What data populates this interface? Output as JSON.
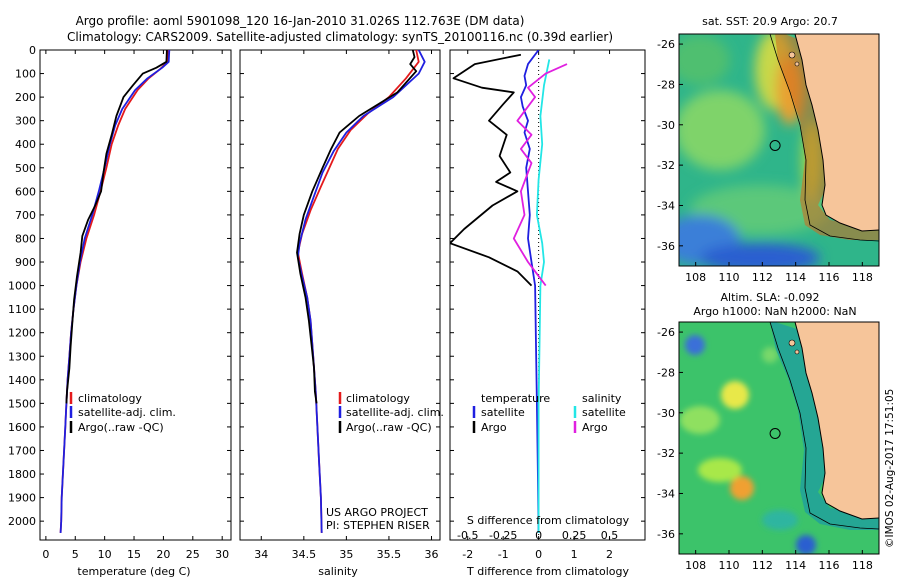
{
  "header": {
    "line1": "Argo profile: aoml 5901098_120 16-Jan-2010 31.026S 112.763E (DM data)",
    "line2": "Climatology: CARS2009. Satellite-adjusted climatology: synTS_20100116.nc (0.39d earlier)"
  },
  "side_stamp": "©IMOS 02-Aug-2017 17:51:05",
  "colors": {
    "climatology": "#e41a1c",
    "satellite": "#1f1fe0",
    "argo": "#000000",
    "sal_satellite": "#22e6e6",
    "sal_argo": "#e020e0",
    "land": "#f6c59a"
  },
  "chart_data": [
    {
      "type": "line",
      "name": "temperature-profile",
      "xlabel": "temperature (deg C)",
      "ylabel": "",
      "xlim": [
        -1,
        31.5
      ],
      "ylim": [
        2080,
        0
      ],
      "xticks": [
        0,
        5,
        10,
        15,
        20,
        25,
        30
      ],
      "yticks": [
        0,
        100,
        200,
        300,
        400,
        500,
        600,
        700,
        800,
        900,
        1000,
        1100,
        1200,
        1300,
        1400,
        1500,
        1600,
        1700,
        1800,
        1900,
        2000
      ],
      "legend": [
        "climatology",
        "satellite-adj. clim.",
        "Argo(..raw -QC)"
      ],
      "legend_position": "bottom-center",
      "series": [
        {
          "name": "climatology",
          "color": "#e41a1c",
          "points": [
            [
              20.8,
              0
            ],
            [
              20.7,
              50
            ],
            [
              19.5,
              80
            ],
            [
              17.5,
              120
            ],
            [
              15.6,
              170
            ],
            [
              13.5,
              250
            ],
            [
              12.3,
              320
            ],
            [
              11.2,
              400
            ],
            [
              10.3,
              500
            ],
            [
              9.3,
              600
            ],
            [
              8.2,
              700
            ],
            [
              6.9,
              800
            ],
            [
              5.9,
              900
            ],
            [
              5.2,
              1000
            ],
            [
              4.7,
              1100
            ],
            [
              4.3,
              1200
            ],
            [
              4.0,
              1300
            ],
            [
              3.7,
              1400
            ],
            [
              3.5,
              1500
            ],
            [
              3.3,
              1600
            ],
            [
              3.1,
              1700
            ],
            [
              2.9,
              1800
            ],
            [
              2.7,
              1900
            ],
            [
              2.6,
              2000
            ],
            [
              2.5,
              2050
            ]
          ]
        },
        {
          "name": "satellite-adj. clim.",
          "color": "#1f1fe0",
          "points": [
            [
              21.0,
              0
            ],
            [
              20.9,
              50
            ],
            [
              19.8,
              75
            ],
            [
              17.3,
              120
            ],
            [
              15.2,
              170
            ],
            [
              13.0,
              250
            ],
            [
              11.8,
              320
            ],
            [
              10.9,
              400
            ],
            [
              10.0,
              500
            ],
            [
              9.0,
              600
            ],
            [
              7.9,
              700
            ],
            [
              6.6,
              800
            ],
            [
              5.8,
              900
            ],
            [
              5.2,
              1000
            ],
            [
              4.7,
              1100
            ],
            [
              4.3,
              1200
            ],
            [
              4.0,
              1300
            ],
            [
              3.7,
              1400
            ],
            [
              3.5,
              1500
            ],
            [
              3.3,
              1600
            ],
            [
              3.1,
              1700
            ],
            [
              2.9,
              1800
            ],
            [
              2.7,
              1900
            ],
            [
              2.6,
              2000
            ],
            [
              2.5,
              2050
            ]
          ]
        },
        {
          "name": "Argo(..raw -QC)",
          "color": "#000000",
          "points": [
            [
              20.6,
              0
            ],
            [
              20.5,
              50
            ],
            [
              18.8,
              75
            ],
            [
              16.5,
              100
            ],
            [
              14.8,
              150
            ],
            [
              13.2,
              200
            ],
            [
              12.0,
              280
            ],
            [
              11.2,
              360
            ],
            [
              10.3,
              440
            ],
            [
              9.8,
              520
            ],
            [
              9.4,
              600
            ],
            [
              8.4,
              660
            ],
            [
              7.2,
              720
            ],
            [
              6.2,
              790
            ],
            [
              5.9,
              860
            ],
            [
              5.3,
              960
            ],
            [
              4.8,
              1060
            ],
            [
              4.5,
              1160
            ],
            [
              4.2,
              1260
            ],
            [
              4.0,
              1350
            ],
            [
              3.8,
              1400
            ],
            [
              3.6,
              1450
            ],
            [
              3.5,
              1500
            ]
          ]
        }
      ]
    },
    {
      "type": "line",
      "name": "salinity-profile",
      "xlabel": "salinity",
      "ylabel": "",
      "xlim": [
        33.75,
        36.1
      ],
      "ylim": [
        2080,
        0
      ],
      "xticks": [
        34,
        34.5,
        35,
        35.5,
        36
      ],
      "legend": [
        "climatology",
        "satellite-adj. clim.",
        "Argo(..raw -QC)"
      ],
      "legend_position": "bottom-center",
      "annotations": [
        "US ARGO PROJECT",
        "PI: STEPHEN RISER"
      ],
      "series": [
        {
          "name": "climatology",
          "color": "#e41a1c",
          "points": [
            [
              35.82,
              0
            ],
            [
              35.85,
              50
            ],
            [
              35.7,
              120
            ],
            [
              35.5,
              200
            ],
            [
              35.25,
              270
            ],
            [
              35.05,
              340
            ],
            [
              34.9,
              420
            ],
            [
              34.8,
              500
            ],
            [
              34.7,
              580
            ],
            [
              34.58,
              680
            ],
            [
              34.48,
              780
            ],
            [
              34.43,
              860
            ],
            [
              34.48,
              950
            ],
            [
              34.54,
              1050
            ],
            [
              34.58,
              1150
            ],
            [
              34.61,
              1300
            ],
            [
              34.64,
              1450
            ],
            [
              34.66,
              1600
            ],
            [
              34.68,
              1750
            ],
            [
              34.7,
              1900
            ],
            [
              34.71,
              2050
            ]
          ]
        },
        {
          "name": "satellite-adj. clim.",
          "color": "#1f1fe0",
          "points": [
            [
              35.85,
              0
            ],
            [
              35.92,
              50
            ],
            [
              35.85,
              100
            ],
            [
              35.55,
              200
            ],
            [
              35.2,
              280
            ],
            [
              35.0,
              350
            ],
            [
              34.85,
              430
            ],
            [
              34.72,
              520
            ],
            [
              34.62,
              620
            ],
            [
              34.52,
              720
            ],
            [
              34.45,
              820
            ],
            [
              34.43,
              880
            ],
            [
              34.48,
              960
            ],
            [
              34.54,
              1050
            ],
            [
              34.58,
              1150
            ],
            [
              34.61,
              1300
            ],
            [
              34.64,
              1450
            ],
            [
              34.66,
              1600
            ],
            [
              34.68,
              1750
            ],
            [
              34.7,
              1900
            ],
            [
              34.71,
              2050
            ]
          ]
        },
        {
          "name": "Argo(..raw -QC)",
          "color": "#000000",
          "points": [
            [
              35.78,
              0
            ],
            [
              35.8,
              30
            ],
            [
              35.75,
              60
            ],
            [
              35.82,
              90
            ],
            [
              35.6,
              180
            ],
            [
              35.15,
              280
            ],
            [
              34.92,
              350
            ],
            [
              34.82,
              420
            ],
            [
              34.72,
              500
            ],
            [
              34.6,
              600
            ],
            [
              34.5,
              700
            ],
            [
              34.45,
              780
            ],
            [
              34.42,
              860
            ],
            [
              34.46,
              950
            ],
            [
              34.52,
              1050
            ],
            [
              34.56,
              1150
            ],
            [
              34.59,
              1250
            ],
            [
              34.62,
              1350
            ],
            [
              34.63,
              1450
            ],
            [
              34.65,
              1500
            ]
          ]
        }
      ]
    },
    {
      "type": "line",
      "name": "difference-profile",
      "xlabel": "T difference from climatology",
      "title_bottom": "S difference from climatology",
      "xlim": [
        -2.5,
        3
      ],
      "ylim": [
        2080,
        0
      ],
      "xticks": [
        -2,
        -1,
        0,
        1,
        2
      ],
      "x2ticks": [
        "-0.5",
        "-0.25",
        "0",
        "0.25",
        "0.5"
      ],
      "x2ticks_at": [
        -2,
        -1,
        0,
        1,
        2
      ],
      "legend": {
        "temperature_heading": "temperature",
        "salinity_heading": "salinity",
        "entries": [
          "satellite",
          "Argo",
          "satellite",
          "Argo"
        ]
      },
      "legend_position": "bottom",
      "series": [
        {
          "name": "temperature satellite",
          "color": "#1f1fe0",
          "points": [
            [
              0,
              0
            ],
            [
              -0.3,
              60
            ],
            [
              -0.4,
              110
            ],
            [
              -0.35,
              150
            ],
            [
              -0.5,
              200
            ],
            [
              -0.45,
              240
            ],
            [
              -0.3,
              300
            ],
            [
              -0.4,
              350
            ],
            [
              -0.25,
              420
            ],
            [
              -0.35,
              500
            ],
            [
              -0.3,
              600
            ],
            [
              -0.25,
              700
            ],
            [
              -0.3,
              800
            ],
            [
              -0.2,
              900
            ],
            [
              -0.1,
              1000
            ],
            [
              -0.08,
              1200
            ],
            [
              -0.05,
              1500
            ],
            [
              -0.02,
              1800
            ],
            [
              0,
              2050
            ]
          ]
        },
        {
          "name": "temperature Argo",
          "color": "#000000",
          "points": [
            [
              -0.5,
              20
            ],
            [
              -1.8,
              60
            ],
            [
              -2.4,
              120
            ],
            [
              -1.6,
              160
            ],
            [
              -0.7,
              180
            ],
            [
              -1.0,
              230
            ],
            [
              -1.4,
              300
            ],
            [
              -0.9,
              360
            ],
            [
              -1.1,
              450
            ],
            [
              -0.8,
              520
            ],
            [
              -1.2,
              560
            ],
            [
              -0.6,
              600
            ],
            [
              -1.3,
              660
            ],
            [
              -2.1,
              760
            ],
            [
              -2.5,
              820
            ],
            [
              -1.4,
              880
            ],
            [
              -0.6,
              940
            ],
            [
              -0.2,
              1000
            ]
          ]
        },
        {
          "name": "salinity satellite",
          "color": "#22e6e6",
          "points": [
            [
              0.3,
              40
            ],
            [
              0.15,
              150
            ],
            [
              0.05,
              280
            ],
            [
              0.1,
              400
            ],
            [
              0,
              550
            ],
            [
              -0.05,
              700
            ],
            [
              0.1,
              820
            ],
            [
              0.15,
              900
            ],
            [
              0.05,
              1000
            ],
            [
              0.03,
              1200
            ],
            [
              0,
              1500
            ],
            [
              0,
              1800
            ],
            [
              0,
              2050
            ]
          ]
        },
        {
          "name": "salinity Argo",
          "color": "#e020e0",
          "points": [
            [
              0.8,
              60
            ],
            [
              0.2,
              100
            ],
            [
              -0.3,
              160
            ],
            [
              -0.1,
              200
            ],
            [
              -0.6,
              300
            ],
            [
              -0.2,
              360
            ],
            [
              -0.5,
              420
            ],
            [
              -0.2,
              480
            ],
            [
              -0.5,
              600
            ],
            [
              -0.4,
              700
            ],
            [
              -0.7,
              800
            ],
            [
              -0.3,
              900
            ],
            [
              -0.2,
              920
            ],
            [
              0.2,
              1000
            ]
          ]
        }
      ]
    },
    {
      "type": "heatmap",
      "name": "sst-map",
      "title": "sat. SST: 20.9 Argo: 20.7",
      "xticks": [
        108,
        110,
        112,
        114,
        116,
        118
      ],
      "yticks": [
        -26,
        -28,
        -30,
        -32,
        -34,
        -36
      ],
      "xlim": [
        107,
        119
      ],
      "ylim": [
        -37,
        -25.5
      ],
      "marker": [
        112.763,
        -31.026
      ]
    },
    {
      "type": "heatmap",
      "name": "sla-map",
      "title": "Altim. SLA: -0.092",
      "subtitle": "Argo h1000: NaN h2000: NaN",
      "xticks": [
        108,
        110,
        112,
        114,
        116,
        118
      ],
      "yticks": [
        -26,
        -28,
        -30,
        -32,
        -34,
        -36
      ],
      "xlim": [
        107,
        119
      ],
      "ylim": [
        -37,
        -25.5
      ],
      "marker": [
        112.763,
        -31.026
      ]
    }
  ]
}
